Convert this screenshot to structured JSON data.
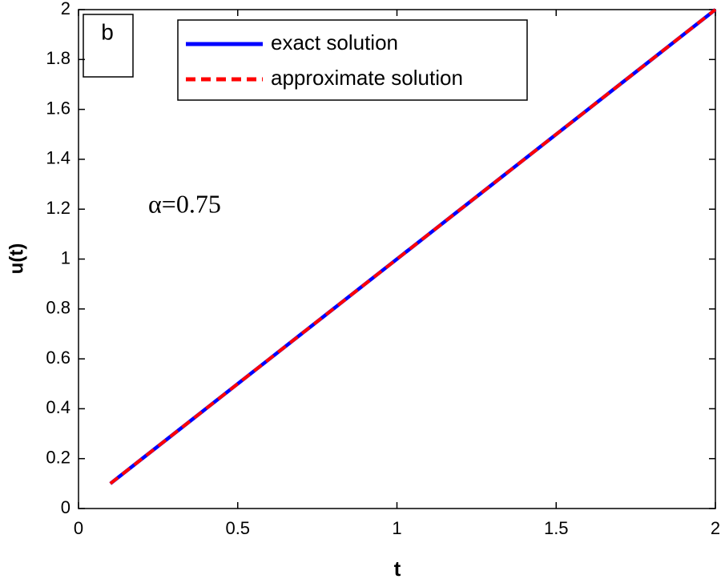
{
  "chart_data": {
    "type": "line",
    "x_label": "t",
    "y_label": "u(t)",
    "annotations": [
      "b",
      "α=0.75"
    ],
    "x": [
      0.1,
      0.2,
      0.3,
      0.4,
      0.5,
      0.6,
      0.7,
      0.8,
      0.9,
      1.0,
      1.1,
      1.2,
      1.3,
      1.4,
      1.5,
      1.6,
      1.7,
      1.8,
      1.9,
      2.0
    ],
    "series": [
      {
        "name": "exact solution",
        "color": "#0000ff",
        "dashed": false,
        "values": [
          0.1,
          0.2,
          0.3,
          0.4,
          0.5,
          0.6,
          0.7,
          0.8,
          0.9,
          1.0,
          1.1,
          1.2,
          1.3,
          1.4,
          1.5,
          1.6,
          1.7,
          1.8,
          1.9,
          2.0
        ]
      },
      {
        "name": "approximate solution",
        "color": "#ff0000",
        "dashed": true,
        "values": [
          0.1,
          0.2,
          0.3,
          0.4,
          0.5,
          0.6,
          0.7,
          0.8,
          0.9,
          1.0,
          1.1,
          1.2,
          1.3,
          1.4,
          1.5,
          1.6,
          1.7,
          1.8,
          1.9,
          2.0
        ]
      }
    ],
    "xlim": [
      0,
      2
    ],
    "xticks": [
      0,
      0.5,
      1,
      1.5,
      2
    ],
    "ylim": [
      0,
      2
    ],
    "yticks": [
      0,
      0.2,
      0.4,
      0.6,
      0.8,
      1,
      1.2,
      1.4,
      1.6,
      1.8,
      2
    ],
    "grid": false,
    "legend": "top"
  }
}
